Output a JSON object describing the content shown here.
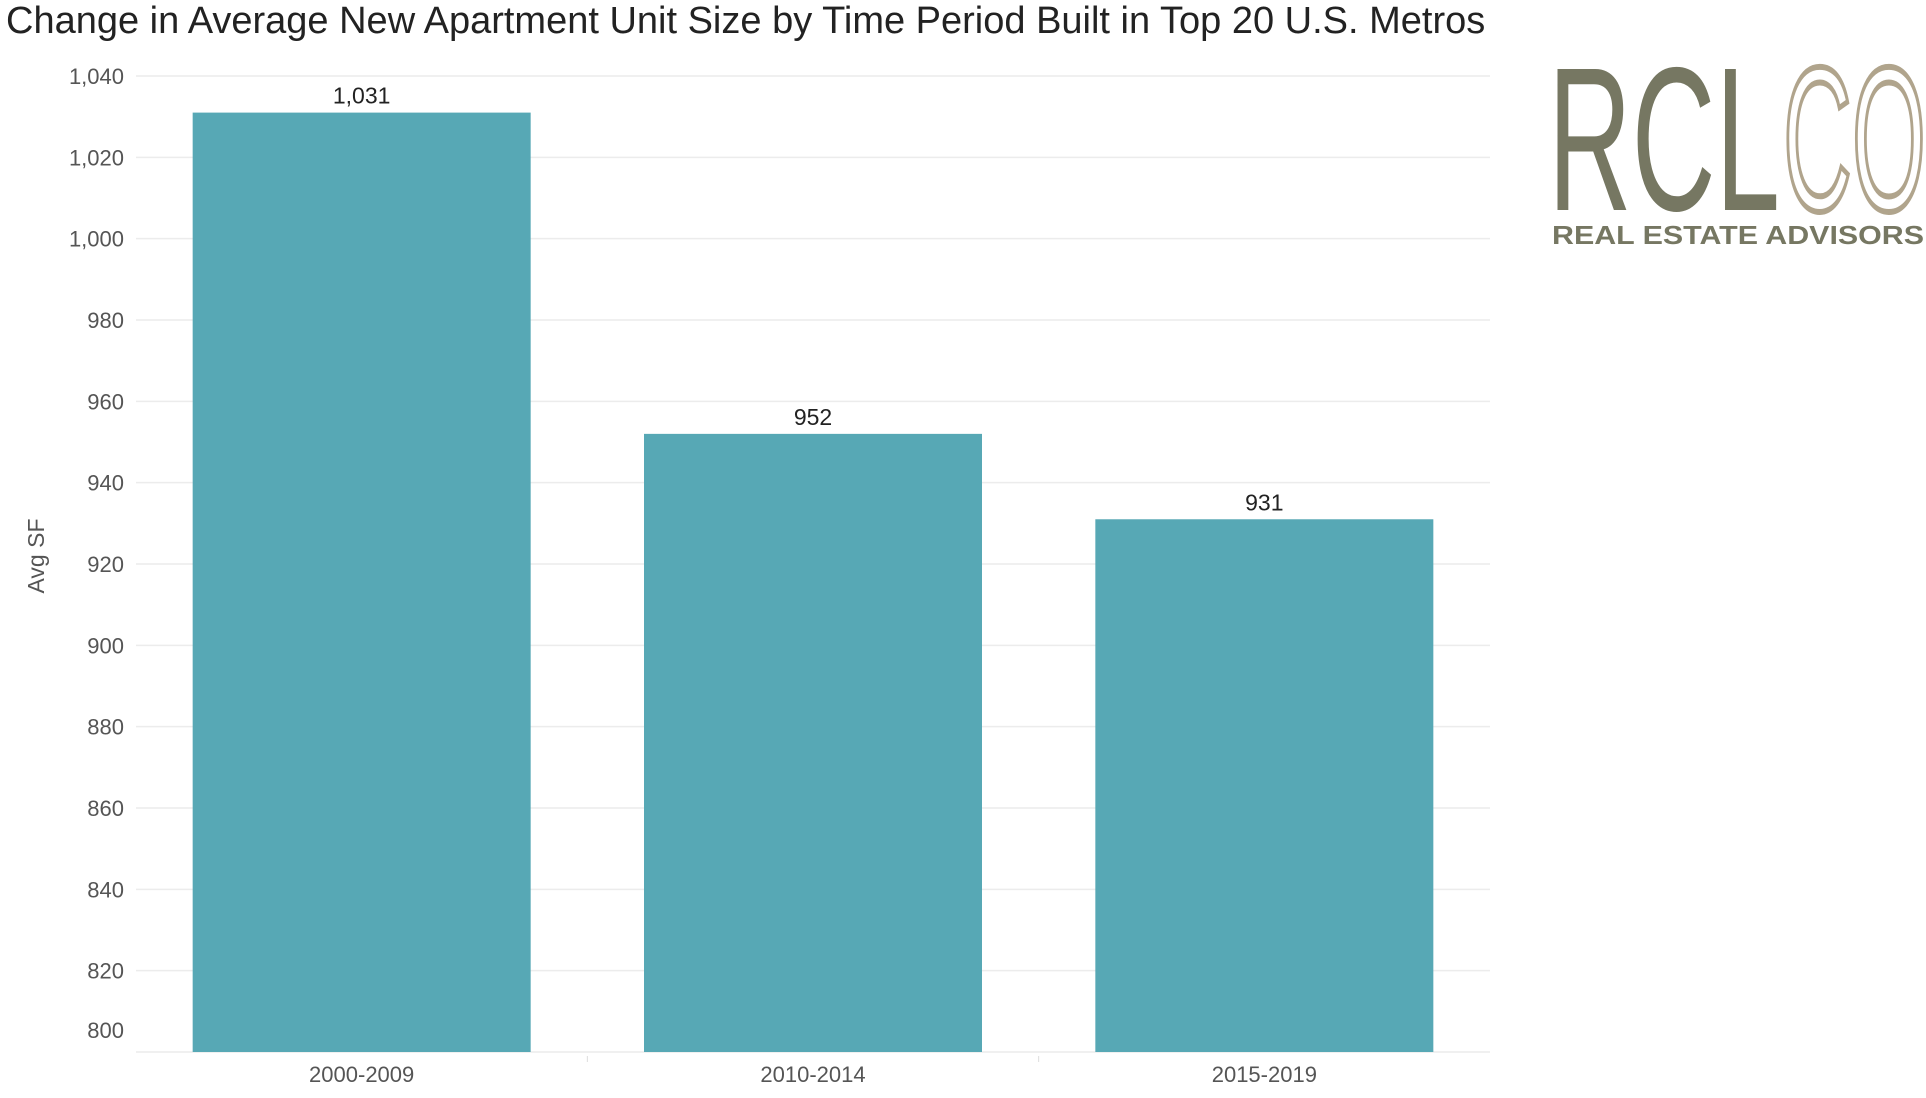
{
  "chart_data": {
    "type": "bar",
    "title": "Change in Average New Apartment Unit Size by Time Period Built in Top 20 U.S. Metros",
    "ylabel": "Avg SF",
    "xlabel": "",
    "categories": [
      "2000-2009",
      "2010-2014",
      "2015-2019"
    ],
    "values": [
      1031,
      952,
      931
    ],
    "value_labels": [
      "1,031",
      "952",
      "931"
    ],
    "ylim": [
      800,
      1040
    ],
    "yticks": [
      800,
      820,
      840,
      860,
      880,
      900,
      920,
      940,
      960,
      980,
      1000,
      1020,
      1040
    ],
    "ytick_labels": [
      "800",
      "820",
      "840",
      "860",
      "880",
      "900",
      "920",
      "940",
      "960",
      "980",
      "1,000",
      "1,020",
      "1,040"
    ],
    "grid": "horizontal",
    "bar_color": "#57a8b5"
  },
  "logo": {
    "letters_dark": "RCL",
    "letters_light": "CO",
    "tagline": "REAL ESTATE ADVISORS",
    "color_dark": "#767762",
    "color_light": "#b0a48c"
  }
}
